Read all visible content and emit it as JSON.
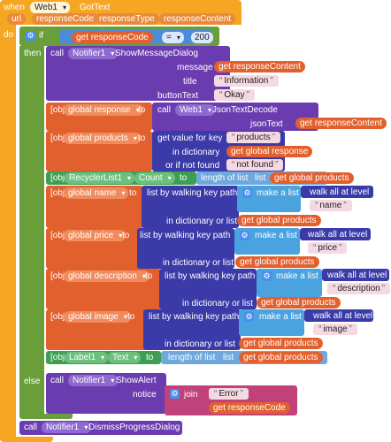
{
  "event": {
    "when": "when",
    "component": "Web1",
    "event": "GotText",
    "params": [
      "url",
      "responseCode",
      "responseType",
      "responseContent"
    ]
  },
  "do_label": "do",
  "if_label": "if",
  "then_label": "then",
  "else_label": "else",
  "cond": {
    "get": "get",
    "var": "responseCode",
    "op": "=",
    "value": "200"
  },
  "call_label": "call",
  "set_label": {
    "component": "Label1",
    "prop": "Text",
    "length": "length of list",
    "list": "list",
    "var": "global products"
  },
  "to_label": "to",
  "get_label": "get",
  "show_msg": {
    "component": "Notifier1",
    "method": "ShowMessageDialog",
    "message": "message",
    "title": "title",
    "button_text": "buttonText",
    "title_val": "Information",
    "button_val": "Okay",
    "message_var": "responseContent"
  },
  "set_response": {
    "var": "global response",
    "method": "JsonTextDecode",
    "component": "Web1",
    "json_text": "jsonText",
    "get_var": "responseContent"
  },
  "set_products": {
    "var": "global products",
    "getkey": "get value for key",
    "key": "products",
    "in_dict": "in dictionary",
    "dict_var": "global response",
    "notfound_label": "or if not found",
    "notfound": "not found"
  },
  "set_count": {
    "component": "RecyclerList1",
    "prop": "Count",
    "length": "length of list",
    "list": "list",
    "var": "global products"
  },
  "walk_label": "list by walking key path",
  "make_list": "make a list",
  "walk_all": "walk all at level",
  "in_dict_list": "in dictionary or list",
  "set_name": {
    "var": "global name",
    "key": "name",
    "dict_var": "global products"
  },
  "set_price": {
    "var": "global price",
    "key": "price",
    "dict_var": "global products"
  },
  "set_description": {
    "var": "global description",
    "key": "description",
    "dict_var": "global products"
  },
  "set_image": {
    "var": "global image",
    "key": "image",
    "dict_var": "global products"
  },
  "show_alert": {
    "component": "Notifier1",
    "method": "ShowAlert",
    "notice": "notice",
    "join": "join",
    "err": "Error",
    "var": "responseCode"
  },
  "dismiss": {
    "component": "Notifier1",
    "method": "DismissProgressDialog"
  }
}
